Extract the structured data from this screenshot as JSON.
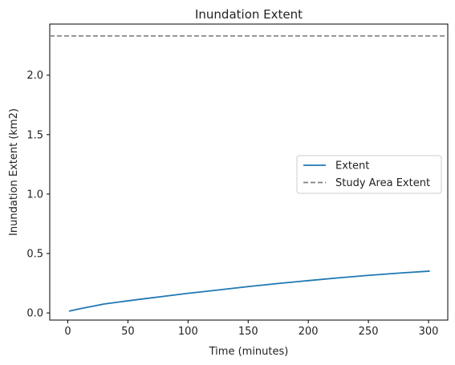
{
  "chart_data": {
    "type": "line",
    "title": "Inundation Extent",
    "xlabel": "Time (minutes)",
    "ylabel": "Inundation Extent (km2)",
    "xlim": [
      -15,
      316
    ],
    "ylim": [
      -0.06,
      2.43
    ],
    "x_ticks": [
      0,
      50,
      100,
      150,
      200,
      250,
      300
    ],
    "y_ticks": [
      0.0,
      0.5,
      1.0,
      1.5,
      2.0
    ],
    "x_tick_labels": [
      "0",
      "50",
      "100",
      "150",
      "200",
      "250",
      "300"
    ],
    "y_tick_labels": [
      "0.0",
      "0.5",
      "1.0",
      "1.5",
      "2.0"
    ],
    "grid": false,
    "legend_placement": "center-right",
    "series": [
      {
        "name": "Extent",
        "color": "#1f77b4",
        "style": "solid",
        "x": [
          1,
          10,
          20,
          30,
          45,
          60,
          80,
          100,
          125,
          150,
          175,
          200,
          225,
          250,
          275,
          301
        ],
        "y": [
          0.015,
          0.035,
          0.055,
          0.075,
          0.095,
          0.115,
          0.14,
          0.165,
          0.193,
          0.222,
          0.248,
          0.272,
          0.295,
          0.316,
          0.335,
          0.352
        ]
      },
      {
        "name": "Study Area Extent",
        "color": "#808080",
        "style": "dashed",
        "hline": 2.33
      }
    ]
  }
}
